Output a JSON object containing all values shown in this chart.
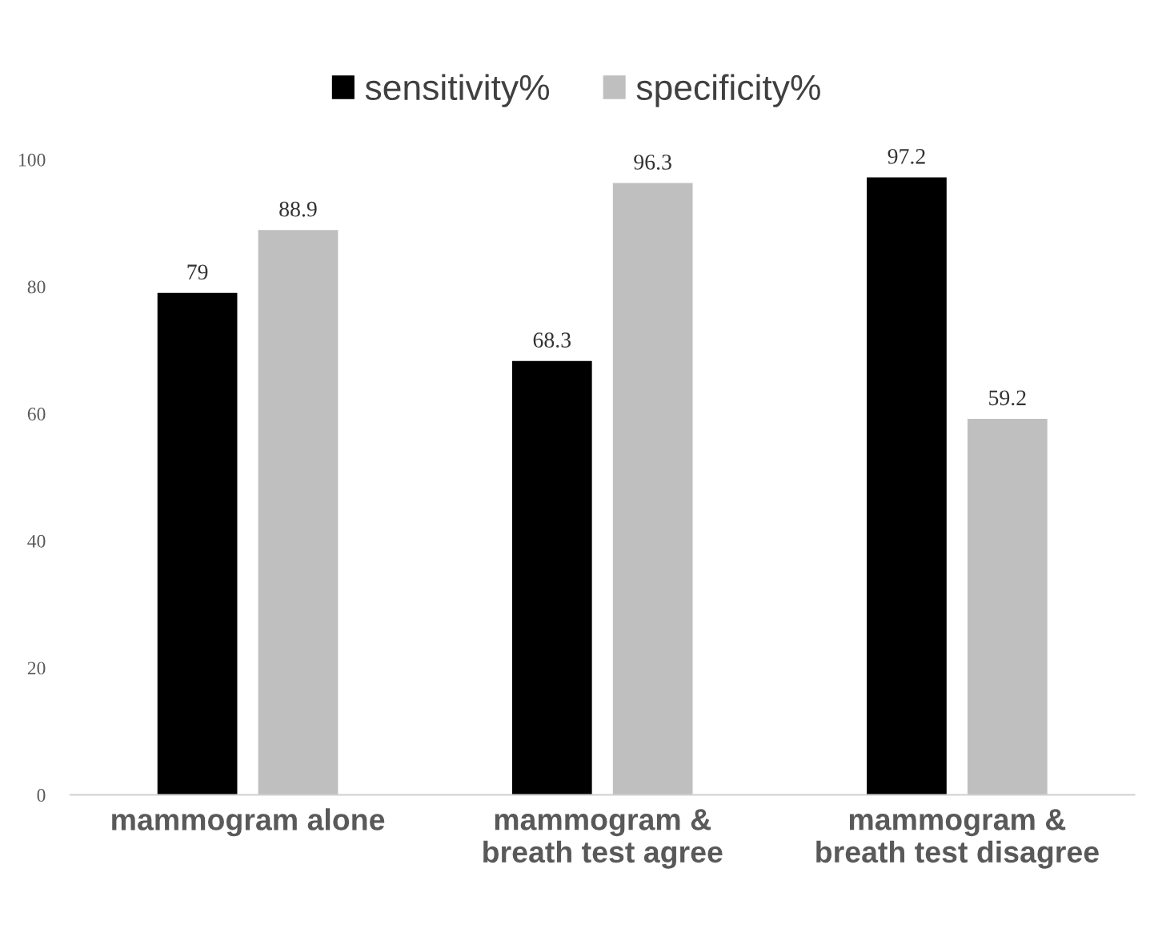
{
  "chart_data": {
    "type": "bar",
    "categories": [
      "mammogram alone",
      "mammogram &\nbreath test agree",
      "mammogram &\nbreath test disagree"
    ],
    "series": [
      {
        "name": "sensitivity%",
        "color": "#000000",
        "values": [
          79,
          68.3,
          97.2
        ]
      },
      {
        "name": "specificity%",
        "color": "#bfbfbf",
        "values": [
          88.9,
          96.3,
          59.2
        ]
      }
    ],
    "ylim": [
      0,
      100
    ],
    "yticks": [
      0,
      20,
      40,
      60,
      80,
      100
    ],
    "data_labels": true,
    "grid": false,
    "legend": "top"
  }
}
